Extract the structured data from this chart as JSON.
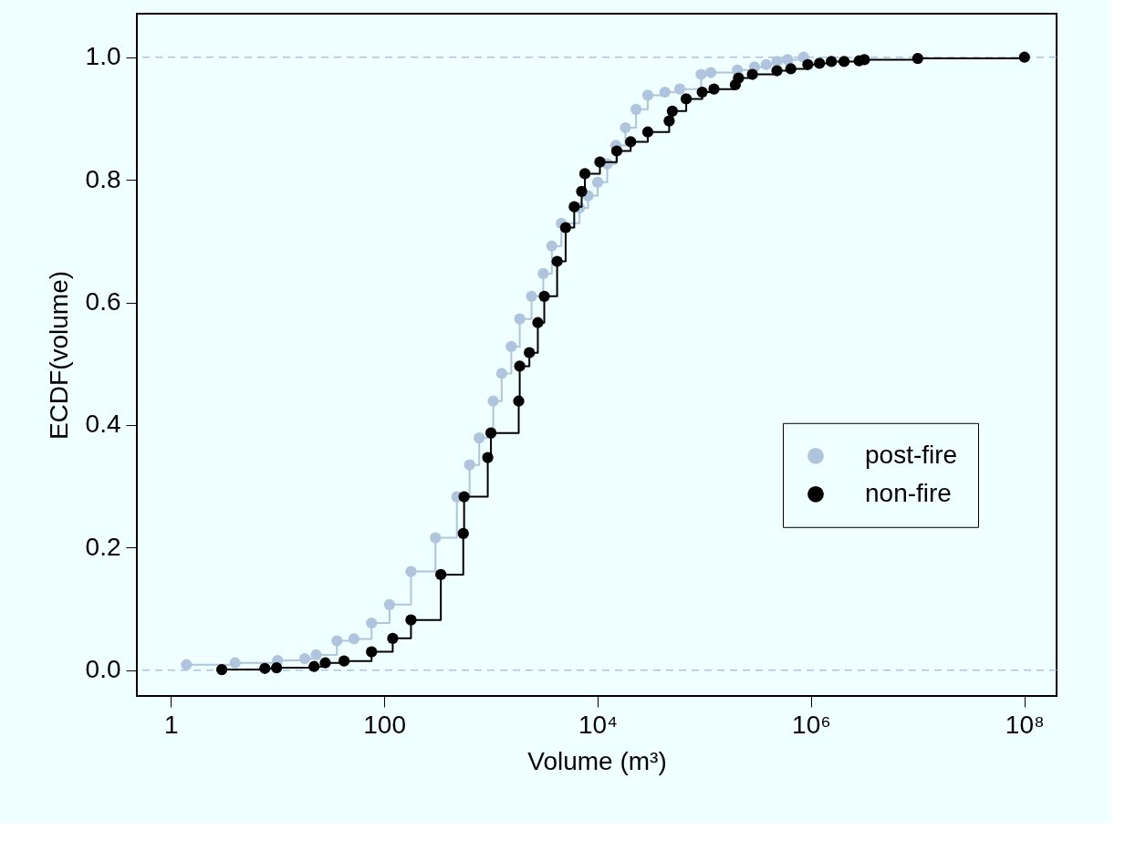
{
  "chart_data": {
    "type": "step",
    "xlabel": "Volume (m³)",
    "ylabel": "ECDF(volume)",
    "log": "x",
    "xlim": [
      0.48,
      200000000
    ],
    "ylim": [
      -0.042,
      1.071
    ],
    "xticks": [
      1,
      100,
      {
        "value": 10000,
        "label": "10⁴"
      },
      {
        "value": 1000000,
        "label": "10⁶"
      },
      {
        "value": 100000000,
        "label": "10⁸"
      }
    ],
    "yticks": [
      {
        "value": 0,
        "label": "0.0"
      },
      0.2,
      0.4,
      0.6,
      0.8,
      {
        "value": 1,
        "label": "1.0"
      }
    ],
    "grid": false,
    "legend": "right",
    "marker": "circle",
    "line_style": "solid",
    "ref_lines": [
      {
        "axis": "y",
        "value": 0,
        "color": "#b0c4de",
        "line_style": "dashed"
      },
      {
        "axis": "y",
        "value": 1,
        "color": "#b0c4de",
        "line_style": "dashed"
      }
    ],
    "series": [
      {
        "name": "post-fire",
        "color": "#b0c4de",
        "x": [
          1.4,
          4.0,
          10,
          18,
          23,
          36,
          52,
          76,
          112,
          178,
          302,
          479,
          631,
          776,
          1050,
          1260,
          1550,
          1860,
          2400,
          3090,
          3720,
          4570,
          6760,
          8130,
          10000,
          12300,
          14800,
          18200,
          22900,
          29500,
          42700,
          58900,
          93300,
          115000,
          204000,
          295000,
          380000,
          479000,
          603000,
          851000
        ],
        "values": [
          0.009,
          0.012,
          0.016,
          0.019,
          0.025,
          0.048,
          0.051,
          0.077,
          0.107,
          0.161,
          0.216,
          0.283,
          0.335,
          0.379,
          0.439,
          0.484,
          0.528,
          0.573,
          0.61,
          0.647,
          0.692,
          0.729,
          0.754,
          0.774,
          0.796,
          0.826,
          0.856,
          0.885,
          0.915,
          0.938,
          0.943,
          0.948,
          0.972,
          0.975,
          0.979,
          0.984,
          0.988,
          0.993,
          0.996,
          1.0
        ]
      },
      {
        "name": "non-fire",
        "color": "#000000",
        "x": [
          3.0,
          7.6,
          9.8,
          22,
          28,
          42,
          76,
          120,
          178,
          339,
          550,
          560,
          933,
          1000,
          1820,
          1860,
          2290,
          2750,
          3160,
          4170,
          5010,
          6030,
          7080,
          7590,
          10500,
          15100,
          20400,
          29500,
          46800,
          50100,
          67600,
          95500,
          123000,
          195000,
          209000,
          282000,
          479000,
          646000,
          933000,
          1200000,
          1550000,
          2040000,
          2820000,
          3160000,
          10000000,
          100000000
        ],
        "values": [
          0.001,
          0.003,
          0.004,
          0.006,
          0.012,
          0.015,
          0.03,
          0.052,
          0.082,
          0.156,
          0.223,
          0.283,
          0.347,
          0.387,
          0.439,
          0.496,
          0.518,
          0.567,
          0.61,
          0.667,
          0.722,
          0.756,
          0.781,
          0.81,
          0.829,
          0.847,
          0.862,
          0.878,
          0.896,
          0.912,
          0.932,
          0.943,
          0.948,
          0.955,
          0.966,
          0.972,
          0.978,
          0.981,
          0.988,
          0.99,
          0.993,
          0.993,
          0.994,
          0.996,
          0.998,
          1.0
        ]
      }
    ]
  }
}
